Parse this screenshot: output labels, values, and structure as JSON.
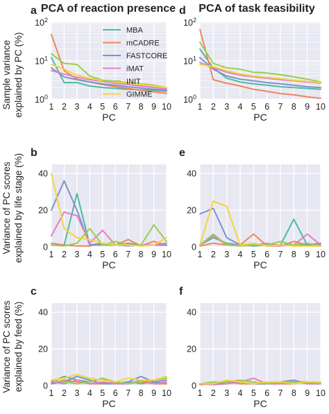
{
  "colors": {
    "MBA": "#4fb99f",
    "mCADRE": "#f0855a",
    "FASTCORE": "#7c93c9",
    "iMAT": "#e07fc2",
    "INIT": "#93cf4c",
    "GIMME": "#f5d33c",
    "panel_bg": "#e8e8f2",
    "grid": "#ffffff"
  },
  "figure": {
    "col_titles": [
      "PCA of reaction presence",
      "PCA of task feasibility"
    ],
    "row_ylabels": [
      [
        "Sample variance",
        "explained by PC (%)"
      ],
      [
        "Variance of PC scores",
        "explained by life stage (%)"
      ],
      [
        "Variance of PC scores",
        "explained by feed (%)"
      ]
    ]
  },
  "chart_data": [
    {
      "id": "a",
      "type": "line",
      "letter": "a",
      "row": 0,
      "col": 0,
      "xlabel": "PC",
      "x": [
        1,
        2,
        3,
        4,
        5,
        6,
        7,
        8,
        9,
        10
      ],
      "xticks": [
        "1",
        "2",
        "3",
        "4",
        "5",
        "6",
        "7",
        "8",
        "9",
        "10"
      ],
      "yscale": "log",
      "ylim": [
        1,
        100
      ],
      "yticks": [
        {
          "value": 1,
          "base": "10",
          "exp": "0"
        },
        {
          "value": 10,
          "base": "10",
          "exp": "1"
        },
        {
          "value": 100,
          "base": "10",
          "exp": "2"
        }
      ],
      "legend": {
        "placement": "upper-center",
        "entries": [
          "MBA",
          "mCADRE",
          "FASTCORE",
          "iMAT",
          "INIT",
          "GIMME"
        ]
      },
      "series": [
        {
          "name": "MBA",
          "values": [
            12,
            2.7,
            2.7,
            2.2,
            2.0,
            1.9,
            1.8,
            1.75,
            1.7,
            1.6
          ]
        },
        {
          "name": "mCADRE",
          "values": [
            48,
            5.5,
            3.3,
            2.8,
            2.4,
            2.1,
            1.9,
            1.7,
            1.55,
            1.4
          ]
        },
        {
          "name": "FASTCORE",
          "values": [
            6.5,
            3.8,
            3.2,
            2.8,
            2.5,
            2.3,
            2.1,
            1.95,
            1.8,
            1.7
          ]
        },
        {
          "name": "iMAT",
          "values": [
            5.5,
            4.5,
            3.7,
            3.2,
            2.9,
            2.6,
            2.4,
            2.2,
            2.0,
            1.85
          ]
        },
        {
          "name": "INIT",
          "values": [
            15,
            8.5,
            8.0,
            4.0,
            3.1,
            2.9,
            2.7,
            2.5,
            2.3,
            2.0
          ]
        },
        {
          "name": "GIMME",
          "values": [
            8.0,
            6.0,
            4.2,
            3.5,
            3.0,
            2.8,
            2.6,
            2.4,
            2.2,
            2.0
          ]
        }
      ]
    },
    {
      "id": "d",
      "type": "line",
      "letter": "d",
      "row": 0,
      "col": 1,
      "xlabel": "PC",
      "x": [
        1,
        2,
        3,
        4,
        5,
        6,
        7,
        8,
        9,
        10
      ],
      "xticks": [
        "1",
        "2",
        "3",
        "4",
        "5",
        "6",
        "7",
        "8",
        "9",
        "10"
      ],
      "yscale": "log",
      "ylim": [
        1,
        100
      ],
      "yticks": [
        {
          "value": 1,
          "base": "10",
          "exp": "0"
        },
        {
          "value": 10,
          "base": "10",
          "exp": "1"
        },
        {
          "value": 100,
          "base": "10",
          "exp": "2"
        }
      ],
      "series": [
        {
          "name": "MBA",
          "values": [
            20,
            6.5,
            3.5,
            2.8,
            2.5,
            2.3,
            2.1,
            2.0,
            1.9,
            1.8
          ]
        },
        {
          "name": "mCADRE",
          "values": [
            65,
            3.2,
            2.6,
            2.2,
            1.8,
            1.6,
            1.4,
            1.3,
            1.15,
            1.05
          ]
        },
        {
          "name": "FASTCORE",
          "values": [
            12,
            6.0,
            4.0,
            3.3,
            3.0,
            2.7,
            2.5,
            2.3,
            2.1,
            2.0
          ]
        },
        {
          "name": "iMAT",
          "values": [
            9.0,
            6.5,
            5.0,
            4.2,
            3.8,
            3.5,
            3.2,
            3.0,
            2.8,
            2.6
          ]
        },
        {
          "name": "INIT",
          "values": [
            30,
            8.5,
            6.5,
            6.0,
            5.0,
            4.8,
            4.3,
            3.8,
            3.3,
            2.8
          ]
        },
        {
          "name": "GIMME",
          "values": [
            8.0,
            7.0,
            5.5,
            4.5,
            4.0,
            3.7,
            3.4,
            3.1,
            2.9,
            2.7
          ]
        }
      ]
    },
    {
      "id": "b",
      "type": "line",
      "letter": "b",
      "row": 1,
      "col": 0,
      "xlabel": "PC",
      "x": [
        1,
        2,
        3,
        4,
        5,
        6,
        7,
        8,
        9,
        10
      ],
      "xticks": [
        "1",
        "2",
        "3",
        "4",
        "5",
        "6",
        "7",
        "8",
        "9",
        "10"
      ],
      "yscale": "linear",
      "ylim": [
        0,
        45
      ],
      "yticks": [
        0,
        20,
        40
      ],
      "series": [
        {
          "name": "MBA",
          "values": [
            1,
            1,
            29,
            1,
            1,
            1,
            2,
            1,
            1,
            1
          ]
        },
        {
          "name": "mCADRE",
          "values": [
            2,
            1,
            0.5,
            0.5,
            2,
            1,
            4,
            0.5,
            3,
            1
          ]
        },
        {
          "name": "FASTCORE",
          "values": [
            20,
            36,
            20,
            1,
            2,
            1,
            1,
            1,
            1,
            1
          ]
        },
        {
          "name": "iMAT",
          "values": [
            6,
            19,
            17,
            2,
            9,
            1,
            0.5,
            1,
            1,
            2
          ]
        },
        {
          "name": "INIT",
          "values": [
            1,
            0.5,
            2,
            10,
            1,
            3,
            1,
            1,
            12,
            3
          ]
        },
        {
          "name": "GIMME",
          "values": [
            40,
            10,
            5,
            4,
            2,
            1,
            1,
            0.5,
            1,
            5
          ]
        }
      ]
    },
    {
      "id": "e",
      "type": "line",
      "letter": "e",
      "row": 1,
      "col": 1,
      "xlabel": "PC",
      "x": [
        1,
        2,
        3,
        4,
        5,
        6,
        7,
        8,
        9,
        10
      ],
      "xticks": [
        "1",
        "2",
        "3",
        "4",
        "5",
        "6",
        "7",
        "8",
        "9",
        "10"
      ],
      "yscale": "linear",
      "ylim": [
        0,
        45
      ],
      "yticks": [
        0,
        20,
        40
      ],
      "series": [
        {
          "name": "MBA",
          "values": [
            1,
            5,
            2,
            1,
            0.5,
            1,
            1,
            15,
            1,
            1
          ]
        },
        {
          "name": "mCADRE",
          "values": [
            0.5,
            2,
            1,
            1,
            7,
            0.5,
            0.5,
            3,
            1,
            0.5
          ]
        },
        {
          "name": "FASTCORE",
          "values": [
            18,
            21,
            5,
            1,
            1,
            1,
            1,
            1,
            1,
            2
          ]
        },
        {
          "name": "iMAT",
          "values": [
            1,
            6,
            1,
            1,
            1,
            2,
            0.5,
            1,
            7,
            1
          ]
        },
        {
          "name": "INIT",
          "values": [
            1,
            7,
            1,
            0.5,
            1,
            1,
            3,
            1,
            2,
            0.5
          ]
        },
        {
          "name": "GIMME",
          "values": [
            1,
            25,
            22,
            1,
            2,
            0.5,
            1,
            0.5,
            0.5,
            0.5
          ]
        }
      ]
    },
    {
      "id": "c",
      "type": "line",
      "letter": "c",
      "row": 2,
      "col": 0,
      "xlabel": "PC",
      "x": [
        1,
        2,
        3,
        4,
        5,
        6,
        7,
        8,
        9,
        10
      ],
      "xticks": [
        "1",
        "2",
        "3",
        "4",
        "5",
        "6",
        "7",
        "8",
        "9",
        "10"
      ],
      "yscale": "linear",
      "ylim": [
        0,
        45
      ],
      "yticks": [
        0,
        20,
        40
      ],
      "series": [
        {
          "name": "MBA",
          "values": [
            2,
            5,
            3,
            2,
            4,
            1,
            2,
            1,
            2,
            1
          ]
        },
        {
          "name": "mCADRE",
          "values": [
            1,
            3,
            2,
            1,
            1,
            2,
            1,
            2,
            1,
            1
          ]
        },
        {
          "name": "FASTCORE",
          "values": [
            1,
            2,
            5,
            3,
            1,
            1,
            2,
            5,
            2,
            3
          ]
        },
        {
          "name": "iMAT",
          "values": [
            2,
            1,
            3,
            1,
            2,
            1,
            1,
            3,
            1,
            2
          ]
        },
        {
          "name": "INIT",
          "values": [
            3,
            2,
            1,
            2,
            4,
            2,
            1,
            2,
            3,
            4
          ]
        },
        {
          "name": "GIMME",
          "values": [
            3,
            4,
            6,
            4,
            3,
            2,
            4,
            3,
            3,
            5
          ]
        }
      ]
    },
    {
      "id": "f",
      "type": "line",
      "letter": "f",
      "row": 2,
      "col": 1,
      "xlabel": "PC",
      "x": [
        1,
        2,
        3,
        4,
        5,
        6,
        7,
        8,
        9,
        10
      ],
      "xticks": [
        "1",
        "2",
        "3",
        "4",
        "5",
        "6",
        "7",
        "8",
        "9",
        "10"
      ],
      "yscale": "linear",
      "ylim": [
        0,
        45
      ],
      "yticks": [
        0,
        20,
        40
      ],
      "series": [
        {
          "name": "MBA",
          "values": [
            1,
            1,
            1,
            2,
            1,
            1,
            1,
            2,
            2,
            1
          ]
        },
        {
          "name": "mCADRE",
          "values": [
            0.5,
            1,
            2,
            1,
            1,
            1,
            1,
            1,
            2,
            1
          ]
        },
        {
          "name": "FASTCORE",
          "values": [
            1,
            1,
            2,
            2,
            1,
            1,
            2,
            3,
            1,
            1
          ]
        },
        {
          "name": "iMAT",
          "values": [
            1,
            0.5,
            1,
            2,
            4,
            1,
            1,
            2,
            1,
            1
          ]
        },
        {
          "name": "INIT",
          "values": [
            1,
            2,
            2,
            3,
            2,
            1,
            2,
            2,
            2,
            1
          ]
        },
        {
          "name": "GIMME",
          "values": [
            1,
            1,
            3,
            2,
            1,
            2,
            2,
            1,
            2,
            2
          ]
        }
      ]
    }
  ]
}
